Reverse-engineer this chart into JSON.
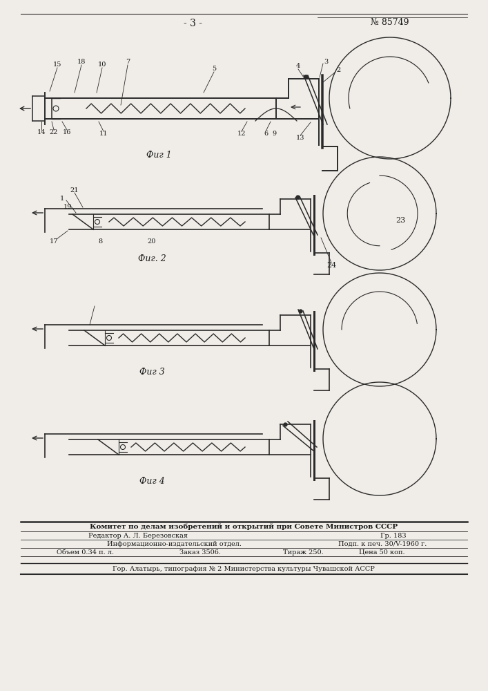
{
  "page_number": "- 3 -",
  "patent_number": "№ 85749",
  "fig_labels": [
    "Фиг 1",
    "Фиг. 2",
    "Фиг 3",
    "Фиг 4"
  ],
  "bg_color": "#f0ede8",
  "line_color": "#2a2a2a",
  "text_color": "#1a1a1a",
  "footer_bold": "Комитет по делам изобретений и открытий при Совете Министров СССР",
  "footer_editor": "Редактор А. Л. Березовская",
  "footer_info": "Информационно-издательский отдел.",
  "footer_gr": "Гр. 183",
  "footer_podp": "Подп. к печ. 30/V-1960 г.",
  "footer_volume": "Объем 0.34 п. л.",
  "footer_zakaz": "Заказ 3506.",
  "footer_tirazh": "Тираж 250.",
  "footer_price": "Цена 50 коп.",
  "footer_city": "Гор. Алатырь, типография № 2 Министерства культуры Чувашской АССР"
}
